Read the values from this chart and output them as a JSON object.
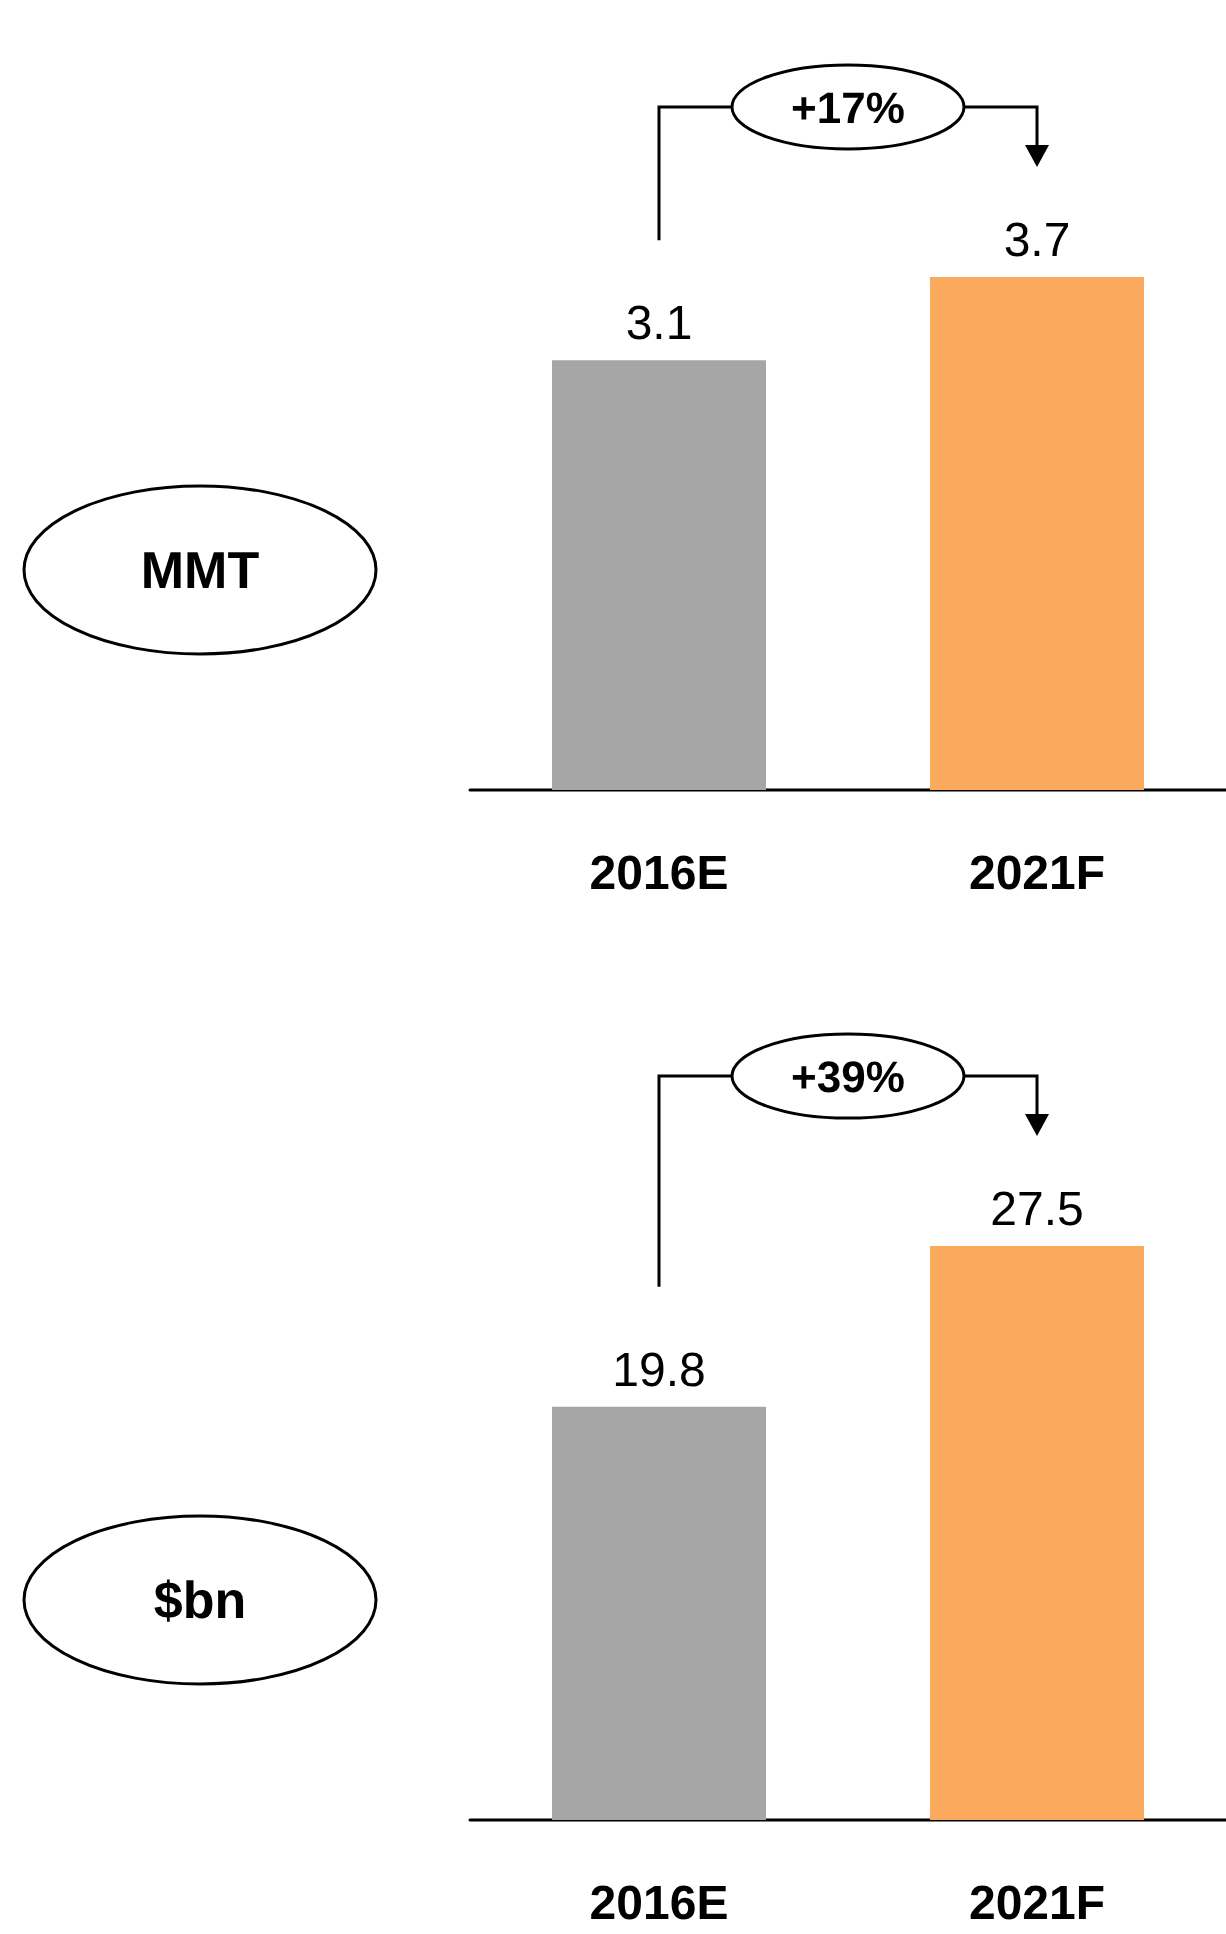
{
  "chart_data": [
    {
      "type": "bar",
      "ylabel": "MMT",
      "categories": [
        "2016E",
        "2021F"
      ],
      "values": [
        3.1,
        3.7
      ],
      "colors": [
        "#a6a6a6",
        "#fbaa5d"
      ],
      "data_labels": true,
      "annotations": [
        "+17%"
      ]
    },
    {
      "type": "bar",
      "ylabel": "$bn",
      "categories": [
        "2016E",
        "2021F"
      ],
      "values": [
        19.8,
        27.5
      ],
      "colors": [
        "#a6a6a6",
        "#fbaa5d"
      ],
      "data_labels": true,
      "annotations": [
        "+39%"
      ]
    }
  ]
}
